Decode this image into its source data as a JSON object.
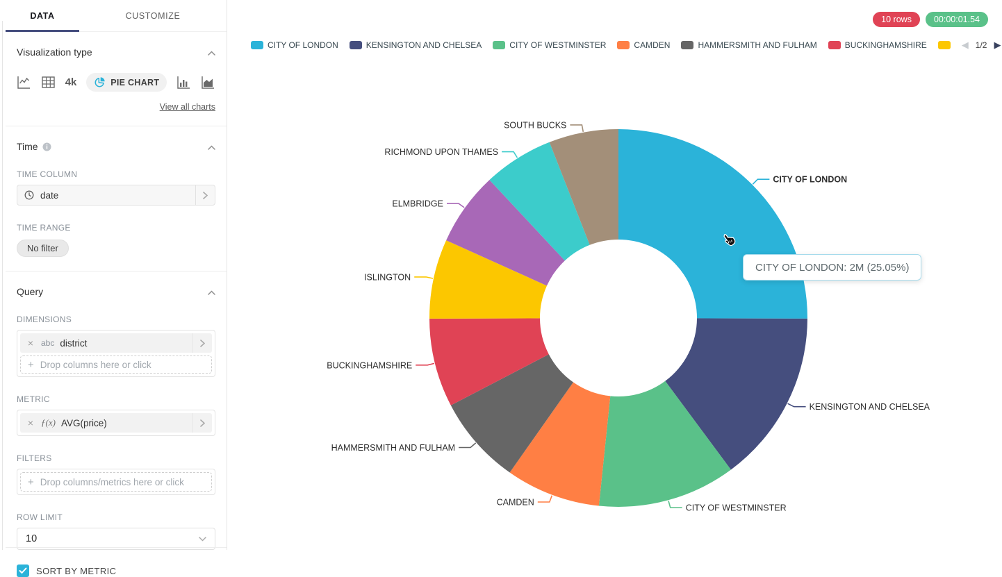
{
  "sidebar": {
    "tabs": {
      "data": "DATA",
      "customize": "CUSTOMIZE"
    },
    "viz": {
      "title": "Visualization type",
      "big_number": "4k",
      "selected": "PIE CHART",
      "view_all": "View all charts"
    },
    "time": {
      "title": "Time",
      "column_label": "TIME COLUMN",
      "column_value": "date",
      "range_label": "TIME RANGE",
      "range_value": "No filter"
    },
    "query": {
      "title": "Query",
      "dimensions_label": "DIMENSIONS",
      "dimension_type": "abc",
      "dimension_value": "district",
      "drop_columns_placeholder": "Drop columns here or click",
      "metric_label": "METRIC",
      "metric_fn": "ƒ(x)",
      "metric_value": "AVG(price)",
      "filters_label": "FILTERS",
      "drop_filters_placeholder": "Drop columns/metrics here or click",
      "row_limit_label": "ROW LIMIT",
      "row_limit_value": "10",
      "sort_label": "SORT BY METRIC",
      "sort_checked": true
    }
  },
  "status": {
    "rows_badge": "10 rows",
    "duration_badge": "00:00:01.54",
    "rows_color": "#E04355",
    "duration_color": "#5AC189"
  },
  "legend": {
    "page": "1/2",
    "visible_items": 6,
    "truncated_swatch_color": "#FCC700"
  },
  "tooltip": {
    "text": "CITY OF LONDON: 2M (25.05%)"
  },
  "chart_data": {
    "type": "pie",
    "variant": "donut",
    "title": "",
    "dimension": "district",
    "metric": "AVG(price)",
    "legend_position": "top",
    "sorted_by_metric_desc": true,
    "start_angle_deg": 0,
    "direction": "clockwise",
    "inner_radius_ratio": 0.415,
    "slices": [
      {
        "label": "CITY OF LONDON",
        "percent": 25.05,
        "value_label": "2M",
        "color": "#2BB3D9",
        "emphasized": true
      },
      {
        "label": "KENSINGTON AND CHELSEA",
        "percent": 14.8,
        "color": "#454E7E"
      },
      {
        "label": "CITY OF WESTMINSTER",
        "percent": 11.8,
        "color": "#5AC189"
      },
      {
        "label": "CAMDEN",
        "percent": 8.1,
        "color": "#FF7F44"
      },
      {
        "label": "HAMMERSMITH AND FULHAM",
        "percent": 7.6,
        "color": "#666666"
      },
      {
        "label": "BUCKINGHAMSHIRE",
        "percent": 7.6,
        "color": "#E04355"
      },
      {
        "label": "ISLINGTON",
        "percent": 6.8,
        "color": "#FCC700"
      },
      {
        "label": "ELMBRIDGE",
        "percent": 6.3,
        "color": "#A868B7"
      },
      {
        "label": "RICHMOND UPON THAMES",
        "percent": 6.0,
        "color": "#3CCCCB"
      },
      {
        "label": "SOUTH BUCKS",
        "percent": 5.95,
        "color": "#A38F79"
      }
    ]
  }
}
